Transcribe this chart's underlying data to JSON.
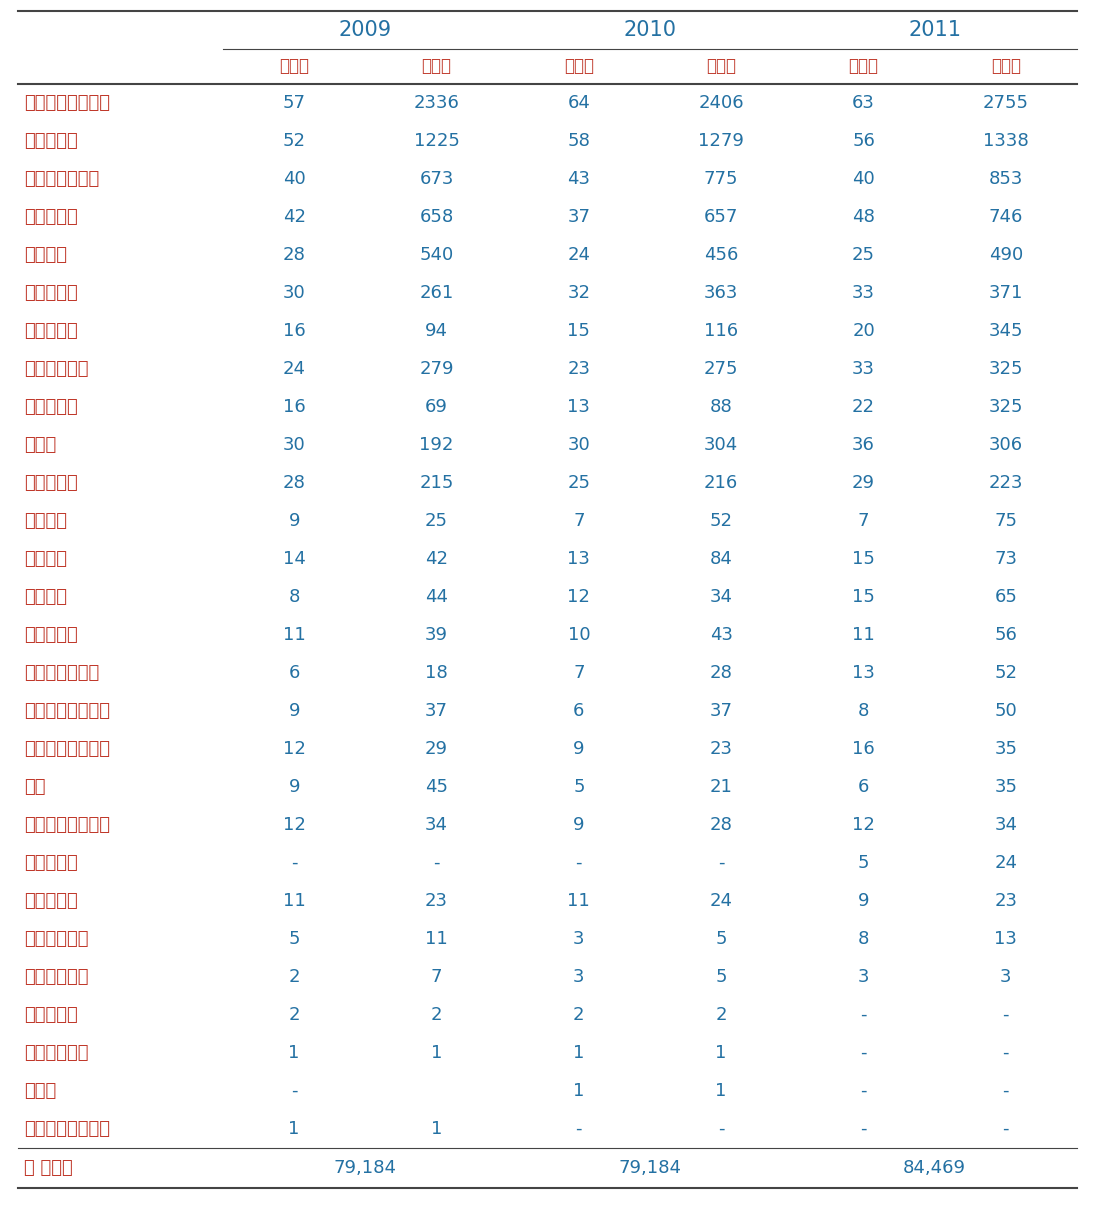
{
  "year_headers": [
    "2009",
    "2010",
    "2011"
  ],
  "sub_headers": [
    "품목명",
    "품목수",
    "품목명",
    "품목수",
    "품목명",
    "품목수"
  ],
  "rows": [
    [
      "파프리카추출색소",
      "57",
      "2336",
      "64",
      "2406",
      "63",
      "2755"
    ],
    [
      "치자황색소",
      "52",
      "1225",
      "58",
      "1279",
      "56",
      "1338"
    ],
    [
      "코치닐추출색소",
      "40",
      "673",
      "43",
      "775",
      "40",
      "853"
    ],
    [
      "치자청색소",
      "42",
      "658",
      "37",
      "657",
      "48",
      "746"
    ],
    [
      "심황색소",
      "28",
      "540",
      "24",
      "456",
      "25",
      "490"
    ],
    [
      "홍화황색소",
      "30",
      "261",
      "32",
      "363",
      "33",
      "371"
    ],
    [
      "안나토색소",
      "16",
      "94",
      "15",
      "116",
      "20",
      "345"
    ],
    [
      "적양배추색소",
      "24",
      "279",
      "23",
      "275",
      "33",
      "325"
    ],
    [
      "카카오색소",
      "16",
      "69",
      "13",
      "88",
      "22",
      "325"
    ],
    [
      "락색소",
      "30",
      "192",
      "30",
      "304",
      "36",
      "306"
    ],
    [
      "홍국적색소",
      "28",
      "215",
      "25",
      "216",
      "29",
      "223"
    ],
    [
      "적무색소",
      "9",
      "25",
      "7",
      "52",
      "7",
      "75"
    ],
    [
      "비트레드",
      "14",
      "42",
      "13",
      "84",
      "15",
      "73"
    ],
    [
      "고량색소",
      "8",
      "44",
      "12",
      "34",
      "15",
      "65"
    ],
    [
      "베리류색소",
      "11",
      "39",
      "10",
      "43",
      "11",
      "56"
    ],
    [
      "오징어먹물색소",
      "6",
      "18",
      "7",
      "28",
      "13",
      "52"
    ],
    [
      "스피룰리나청색소",
      "9",
      "37",
      "6",
      "37",
      "8",
      "50"
    ],
    [
      "포도과피추출색소",
      "12",
      "29",
      "9",
      "23",
      "16",
      "35"
    ],
    [
      "루팀",
      "9",
      "45",
      "5",
      "21",
      "6",
      "35"
    ],
    [
      "자주색고구마색소",
      "12",
      "34",
      "9",
      "28",
      "12",
      "34"
    ],
    [
      "차즈기색소",
      "-",
      "-",
      "-",
      "-",
      "5",
      "24"
    ],
    [
      "치차적색소",
      "11",
      "23",
      "11",
      "24",
      "9",
      "23"
    ],
    [
      "마리골드색소",
      "5",
      "11",
      "3",
      "5",
      "8",
      "13"
    ],
    [
      "타마린드색소",
      "2",
      "7",
      "3",
      "5",
      "3",
      "3"
    ],
    [
      "토마토색소",
      "2",
      "2",
      "2",
      "2",
      "-",
      "-"
    ],
    [
      "포도과즙색소",
      "1",
      "1",
      "1",
      "1",
      "-",
      "-"
    ],
    [
      "감색소",
      "-",
      "",
      "1",
      "1",
      "-",
      "-"
    ],
    [
      "자주색옥수수색소",
      "1",
      "1",
      "-",
      "-",
      "-",
      "-"
    ]
  ],
  "footer_label": "잡 품목수",
  "footer_vals": [
    "79,184",
    "79,184",
    "84,469"
  ],
  "text_color_korean": "#c0392b",
  "text_color_numbers": "#2471a3",
  "text_color_year": "#2471a3",
  "line_color": "#444444",
  "bg_color": "#ffffff",
  "font_size_data": 13,
  "font_size_year": 15,
  "font_size_subheader": 12
}
